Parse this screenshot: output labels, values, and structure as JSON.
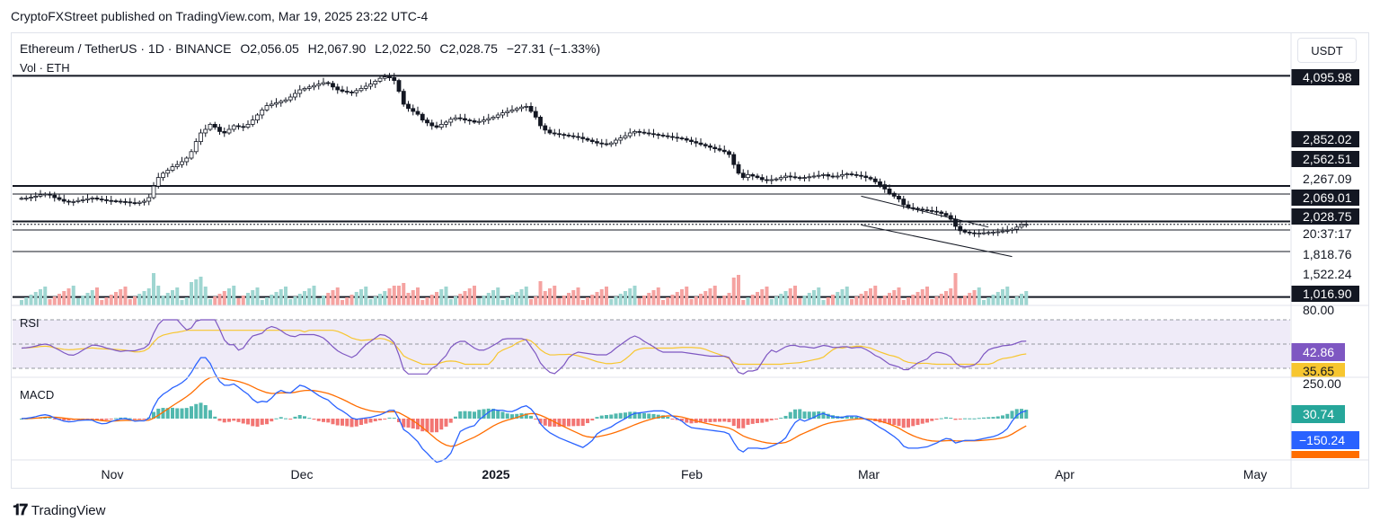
{
  "header": {
    "publisher_line": "CryptoFXStreet published on TradingView.com, Mar 19, 2025 23:22 UTC-4"
  },
  "legend": {
    "symbol": "Ethereum / TetherUS · 1D · BINANCE",
    "open": "O2,056.05",
    "high": "H2,067.90",
    "low": "L2,022.50",
    "close": "C2,028.75",
    "change": "−27.31 (−1.33%)",
    "volume_label": "Vol · ETH"
  },
  "currency_button": "USDT",
  "colors": {
    "up": "#26a69a",
    "down": "#ef5350",
    "candle_up": "#ffffff",
    "candle_down": "#131722",
    "rsi": "#7e57c2",
    "rsi_ma": "#f7c62f",
    "macd": "#2962ff",
    "signal": "#ff6d00"
  },
  "chart_data": {
    "type": "candlestick",
    "x_ticks": [
      "Nov",
      "Dec",
      "2025",
      "Feb",
      "Mar",
      "Apr",
      "May"
    ],
    "price_levels": [
      "4,095.98",
      "2,852.02",
      "2,562.51",
      "2,267.09",
      "2,069.01",
      "2,028.75",
      "20:37:17",
      "1,818.76",
      "1,522.24",
      "1,016.90"
    ],
    "horizontal_lines": [
      4095.98,
      2562.51,
      2069.01,
      2028.75,
      1016.9
    ],
    "ylim": [
      950,
      4150
    ],
    "closes": [
      2390,
      2395,
      2405,
      2420,
      2440,
      2450,
      2435,
      2400,
      2375,
      2350,
      2340,
      2345,
      2360,
      2370,
      2385,
      2395,
      2380,
      2370,
      2360,
      2355,
      2350,
      2345,
      2340,
      2330,
      2320,
      2335,
      2350,
      2400,
      2560,
      2680,
      2740,
      2780,
      2830,
      2860,
      2900,
      2950,
      3040,
      3180,
      3300,
      3350,
      3420,
      3380,
      3320,
      3300,
      3350,
      3400,
      3390,
      3380,
      3420,
      3480,
      3550,
      3620,
      3680,
      3700,
      3720,
      3740,
      3760,
      3800,
      3850,
      3900,
      3920,
      3940,
      3960,
      3980,
      4000,
      3990,
      3940,
      3900,
      3880,
      3870,
      3860,
      3890,
      3920,
      3950,
      3980,
      4020,
      4060,
      4080,
      4070,
      4030,
      3880,
      3700,
      3640,
      3600,
      3560,
      3480,
      3440,
      3400,
      3380,
      3420,
      3450,
      3490,
      3510,
      3500,
      3480,
      3470,
      3450,
      3460,
      3480,
      3500,
      3520,
      3550,
      3580,
      3600,
      3620,
      3640,
      3660,
      3670,
      3600,
      3520,
      3400,
      3340,
      3300,
      3290,
      3280,
      3270,
      3260,
      3250,
      3240,
      3220,
      3200,
      3180,
      3160,
      3150,
      3140,
      3160,
      3200,
      3230,
      3260,
      3300,
      3320,
      3310,
      3300,
      3290,
      3280,
      3270,
      3260,
      3250,
      3240,
      3230,
      3220,
      3200,
      3180,
      3160,
      3140,
      3120,
      3100,
      3080,
      3060,
      3040,
      3000,
      2860,
      2740,
      2680,
      2720,
      2700,
      2680,
      2650,
      2640,
      2650,
      2660,
      2680,
      2700,
      2690,
      2680,
      2670,
      2680,
      2690,
      2700,
      2710,
      2720,
      2700,
      2690,
      2700,
      2720,
      2730,
      2720,
      2710,
      2700,
      2680,
      2660,
      2620,
      2580,
      2520,
      2460,
      2420,
      2380,
      2300,
      2260,
      2250,
      2240,
      2230,
      2220,
      2210,
      2200,
      2180,
      2150,
      2100,
      2000,
      1940,
      1920,
      1910,
      1900,
      1905,
      1910,
      1915,
      1920,
      1925,
      1935,
      1945,
      1960,
      1990,
      2020,
      2028.75
    ],
    "rsi": {
      "value": "42.86",
      "ma_value": "35.65",
      "upper": "80.00",
      "upper_line": 70,
      "lower_line": 30
    },
    "macd": {
      "axis_label": "250.00",
      "hist_value": "30.74",
      "macd_value": "−150.24"
    }
  },
  "branding": {
    "name": "TradingView"
  }
}
